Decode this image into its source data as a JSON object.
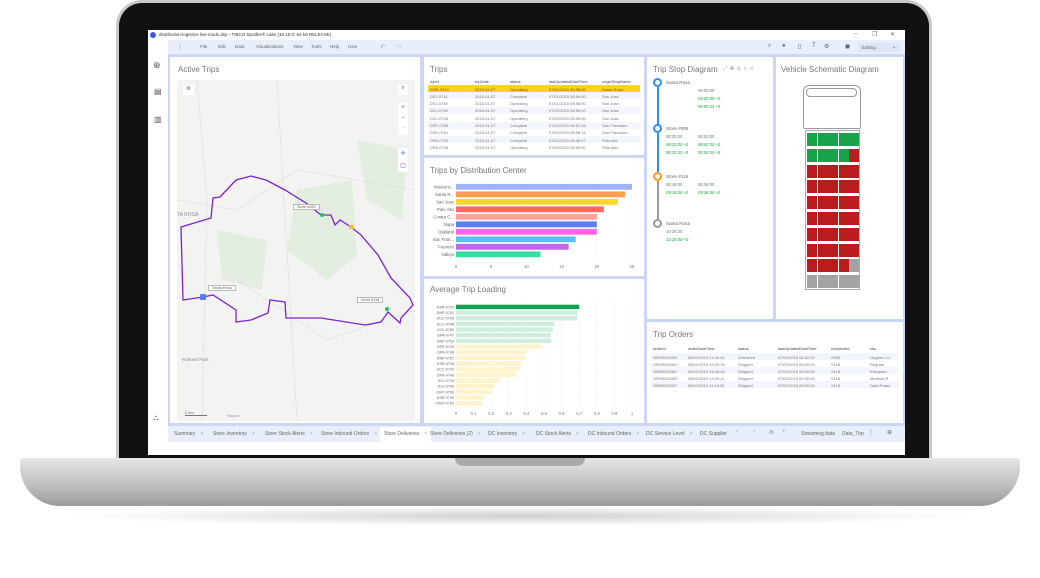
{
  "window": {
    "title": "distribution-logistics-live-mods.dxp - TIBCO Spotfire® Labs (10.10.0; 64-bit RELEASE)",
    "minimize": "–",
    "maximize": "❐",
    "close": "✕"
  },
  "menu": {
    "items": [
      "File",
      "Edit",
      "Data",
      "Visualizations",
      "View",
      "Tools",
      "Help",
      "User"
    ],
    "mode": "Editing"
  },
  "active_trips": {
    "title": "Active Trips",
    "map_labels": {
      "city": "TA ROSA",
      "town": "Rohnert Park",
      "scale": "2 km",
      "credit": "Mapbox"
    },
    "markers": [
      {
        "label": "Store #085",
        "color": "#22c55e"
      },
      {
        "label": "Santa Rosa",
        "color": "#4f7ef7"
      },
      {
        "label": "Store #118",
        "color": "#22c55e"
      }
    ],
    "vehicle_color": "#fbbf24",
    "route_color": "#7e22ce"
  },
  "trips": {
    "title": "Trips",
    "columns": [
      "tripId",
      "tripDate",
      "status",
      "lastUpdatedDateTime",
      "originStopName"
    ],
    "selected_color": "#ffd21f",
    "rows": [
      [
        "DSR-0724",
        "2015-01-07",
        "Operating",
        "07/01/2015 08:58:00",
        "Santa Rosa"
      ],
      [
        "DSJ-0741",
        "2015-01-07",
        "Complete",
        "07/01/2015 08:54:00",
        "San Jose"
      ],
      [
        "DSJ-0740",
        "2015-01-07",
        "Operating",
        "07/01/2015 08:58:00",
        "San Jose"
      ],
      [
        "DSJ-0739",
        "2015-01-07",
        "Operating",
        "07/01/2015 08:59:00",
        "San Jose"
      ],
      [
        "DSJ-0738",
        "2015-01-07",
        "Operating",
        "07/01/2015 08:59:00",
        "San Jose"
      ],
      [
        "DSF-0765",
        "2015-01-07",
        "Complete",
        "07/01/2015 08:57:46",
        "San Francisco"
      ],
      [
        "DSF-0761",
        "2015-01-07",
        "Complete",
        "07/01/2015 08:58:16",
        "San Francisco"
      ],
      [
        "DPA-0750",
        "2015-01-07",
        "Complete",
        "07/01/2015 08:36:57",
        "Palo Alto"
      ],
      [
        "DPA-0749",
        "2015-01-07",
        "Operating",
        "07/01/2015 08:59:00",
        "Palo Alto"
      ]
    ]
  },
  "chart_data": [
    {
      "type": "bar",
      "orientation": "horizontal",
      "title": "Trips by Distribution Center",
      "categories": [
        "Watsonv...",
        "Santa R...",
        "San Jose",
        "Palo Alto",
        "Contra C...",
        "Napa",
        "Oakland",
        "San Fran...",
        "Fremont",
        "Vallejo"
      ],
      "values": [
        25,
        24,
        23,
        21,
        20,
        20,
        20,
        17,
        16,
        12
      ],
      "colors": [
        "#9fb4f5",
        "#ff9e50",
        "#ffd52e",
        "#ff6b5b",
        "#ffa39a",
        "#5b7ff5",
        "#ff66dd",
        "#5bc0f5",
        "#c266ee",
        "#34e0a0"
      ],
      "xlim": [
        0,
        25
      ],
      "ticks": [
        "0",
        "5",
        "10",
        "15",
        "20",
        "25"
      ],
      "grid": true
    },
    {
      "type": "bar",
      "orientation": "horizontal",
      "title": "Average Trip Loading",
      "categories": [
        "DSR-0724",
        "DNP-0751",
        "DCC-0742",
        "DCC-0746",
        "DVL-0759",
        "DPA-0747",
        "DNP-0754",
        "DFR-0745",
        "DPA-0748",
        "DNP-0757",
        "DSR-0735",
        "DCC-0743",
        "DFR-0746",
        "DSJ-0739",
        "DSJ-0740",
        "DWT-0760",
        "DSR-0736",
        "DWT-0763"
      ],
      "values": [
        0.7,
        0.69,
        0.69,
        0.56,
        0.55,
        0.54,
        0.54,
        0.49,
        0.4,
        0.39,
        0.37,
        0.36,
        0.34,
        0.25,
        0.22,
        0.2,
        0.16,
        0.15
      ],
      "colors": [
        "#0aa350",
        "#cdeedd",
        "#cdeedd",
        "#cdeedd",
        "#cdeedd",
        "#cdeedd",
        "#cdeedd",
        "#fff3cc",
        "#fff3cc",
        "#fff3cc",
        "#fff3cc",
        "#fff3cc",
        "#fff3cc",
        "#fff3cc",
        "#fff3cc",
        "#fff3cc",
        "#fff3cc",
        "#fff3cc"
      ],
      "xlim": [
        0,
        1
      ],
      "ticks": [
        "0",
        "0.1",
        "0.2",
        "0.3",
        "0.4",
        "0.5",
        "0.6",
        "0.7",
        "0.8",
        "0.9",
        "1"
      ],
      "grid": true
    }
  ],
  "trip_stop": {
    "title": "Trip Stop Diagram",
    "stops": [
      {
        "name": "Santa Rosa",
        "color": "#2f8cff",
        "lines": [
          [
            "",
            "08:00:00"
          ],
          [
            "",
            "08:00:00 +0"
          ],
          [
            "",
            "08:00:24 +0"
          ]
        ]
      },
      {
        "name": "Store #085",
        "color": "#2f8cff",
        "lines": [
          [
            "08:32:00",
            "08:52:00"
          ],
          [
            "08:32:00 +0",
            "08:52:00 +0"
          ],
          [
            "08:32:22 +0",
            "08:52:04 +0"
          ]
        ]
      },
      {
        "name": "Store #118",
        "color": "#ff9a1f",
        "lines": [
          [
            "09:16:00",
            "09:36:00"
          ],
          [
            "09:16:00 +0",
            "09:36:00 +0"
          ]
        ]
      },
      {
        "name": "Santa Rosa",
        "color": "#999999",
        "lines": [
          [
            "10:25:00",
            ""
          ],
          [
            "10:25:00 +0",
            ""
          ]
        ]
      }
    ]
  },
  "vehicle": {
    "title": "Vehicle Schematic Diagram",
    "grid": [
      [
        "g",
        "g",
        "g",
        "g",
        "g"
      ],
      [
        "g",
        "g",
        "g",
        "g",
        "r"
      ],
      [
        "r",
        "r",
        "r",
        "r",
        "r"
      ],
      [
        "r",
        "r",
        "r",
        "r",
        "r"
      ],
      [
        "r",
        "r",
        "r",
        "r",
        "r"
      ],
      [
        "r",
        "r",
        "r",
        "r",
        "r"
      ],
      [
        "r",
        "r",
        "r",
        "r",
        "r"
      ],
      [
        "r",
        "r",
        "r",
        "r",
        "r"
      ],
      [
        "r",
        "r",
        "r",
        "r",
        "x"
      ],
      [
        "x",
        "x",
        "x",
        "x",
        "x"
      ]
    ],
    "colors": {
      "g": "#16a34a",
      "r": "#b91c1c",
      "x": "#a3a3a3"
    }
  },
  "trip_orders": {
    "title": "Trip Orders",
    "columns": [
      "orderId",
      "orderDateTime",
      "status",
      "lastUpdatedDateTime",
      "recipientId",
      "sku"
    ],
    "rows": [
      [
        "ORD9002422",
        "06/01/2015 21:44:42",
        "Delivered",
        "07/01/2015 08:32:22",
        "S085",
        "Organic Lo"
      ],
      [
        "ORD9002401",
        "06/01/2015 19:19:16",
        "Shipped",
        "07/01/2015 05:00:00",
        "S118",
        "Regular"
      ],
      [
        "ORD9002367",
        "06/01/2015 14:44:48",
        "Shipped",
        "07/01/2015 05:00:00",
        "S118",
        "Ethiopian"
      ],
      [
        "ORD9002353",
        "06/01/2015 14:02:11",
        "Shipped",
        "07/01/2015 05:00:00",
        "S118",
        "Medium R"
      ],
      [
        "ORD9002327",
        "06/01/2015 11:14:03",
        "Shipped",
        "07/01/2015 05:00:00",
        "S118",
        "Dark Roast"
      ]
    ]
  },
  "tabs": {
    "items": [
      "Summary",
      "Store Inventory",
      "Store Stock Alerts",
      "Store Inbound Orders",
      "Store Deliveries",
      "Store Deliveries (2)",
      "DC Inventory",
      "DC Stock Alerts",
      "DC Inbound Orders",
      "DC Service Level",
      "DC Supplier"
    ],
    "active": "Store Deliveries",
    "right": [
      "Streaming data",
      "Data_Trip"
    ]
  }
}
